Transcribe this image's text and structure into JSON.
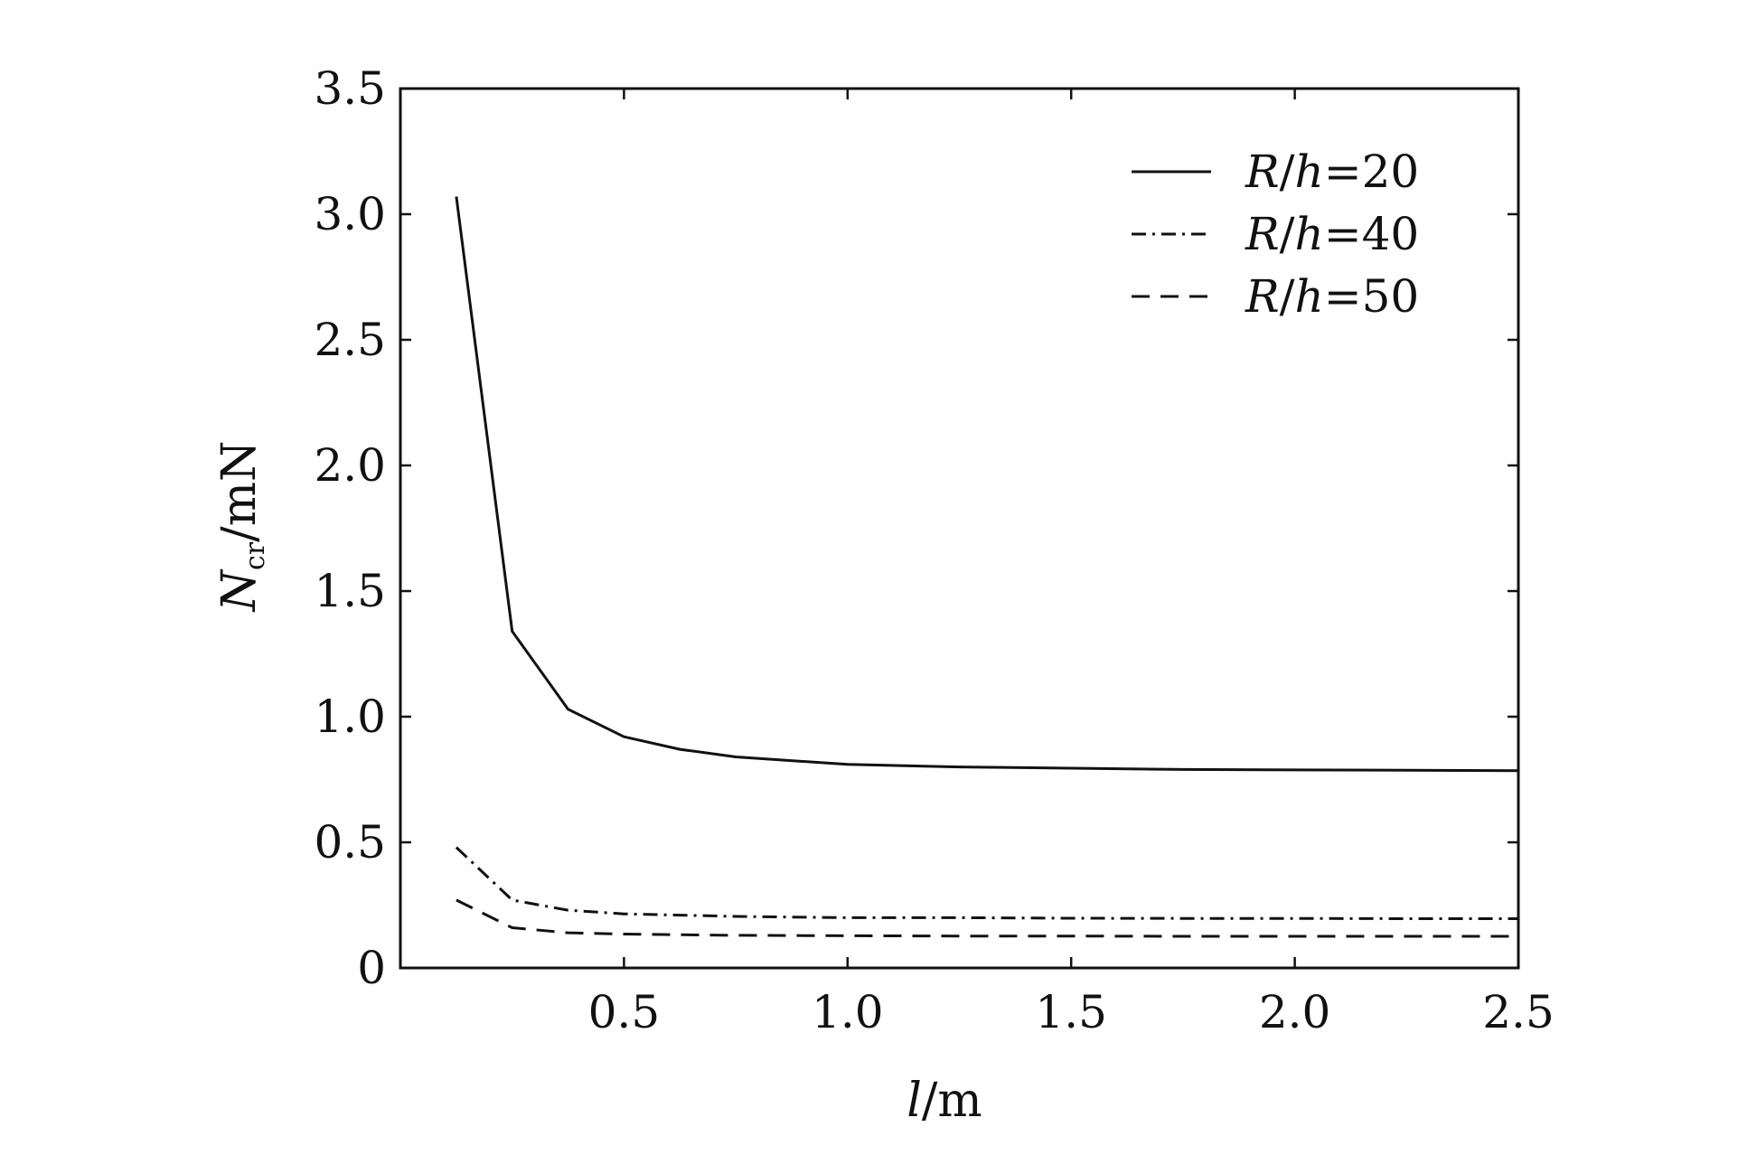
{
  "chart_data": {
    "type": "line",
    "title": "",
    "xlabel": {
      "var": "l",
      "unit": "/m"
    },
    "ylabel": {
      "var": "N",
      "sub": "cr",
      "unit": "/mN"
    },
    "xlim": [
      0,
      2.5
    ],
    "ylim": [
      0,
      3.5
    ],
    "xticks": [
      {
        "value": 0.5,
        "label": "0.5"
      },
      {
        "value": 1.0,
        "label": "1.0"
      },
      {
        "value": 1.5,
        "label": "1.5"
      },
      {
        "value": 2.0,
        "label": "2.0"
      },
      {
        "value": 2.5,
        "label": "2.5"
      }
    ],
    "yticks": [
      {
        "value": 0,
        "label": "0"
      },
      {
        "value": 0.5,
        "label": "0.5"
      },
      {
        "value": 1.0,
        "label": "1.0"
      },
      {
        "value": 1.5,
        "label": "1.5"
      },
      {
        "value": 2.0,
        "label": "2.0"
      },
      {
        "value": 2.5,
        "label": "2.5"
      },
      {
        "value": 3.0,
        "label": "3.0"
      },
      {
        "value": 3.5,
        "label": "3.5"
      }
    ],
    "grid": false,
    "legend_position": "top-right",
    "x": [
      0.125,
      0.25,
      0.375,
      0.5,
      0.625,
      0.75,
      1.0,
      1.25,
      1.5,
      1.75,
      2.0,
      2.25,
      2.5
    ],
    "series": [
      {
        "name": "R/h=20",
        "legend": {
          "pre": "R",
          "mid": "/",
          "var2": "h",
          "post": "=20"
        },
        "style": "solid",
        "values": [
          3.07,
          1.34,
          1.03,
          0.92,
          0.87,
          0.84,
          0.81,
          0.8,
          0.795,
          0.79,
          0.788,
          0.787,
          0.785
        ]
      },
      {
        "name": "R/h=40",
        "legend": {
          "pre": "R",
          "mid": "/",
          "var2": "h",
          "post": "=40"
        },
        "style": "dashdot",
        "values": [
          0.48,
          0.27,
          0.23,
          0.215,
          0.21,
          0.205,
          0.2,
          0.2,
          0.198,
          0.197,
          0.197,
          0.196,
          0.196
        ]
      },
      {
        "name": "R/h=50",
        "legend": {
          "pre": "R",
          "mid": "/",
          "var2": "h",
          "post": "=50"
        },
        "style": "dashed",
        "values": [
          0.27,
          0.16,
          0.14,
          0.135,
          0.132,
          0.13,
          0.128,
          0.127,
          0.127,
          0.126,
          0.126,
          0.126,
          0.126
        ]
      }
    ],
    "colors": {
      "line": "#111111",
      "axis": "#111111",
      "background": "#ffffff"
    }
  }
}
